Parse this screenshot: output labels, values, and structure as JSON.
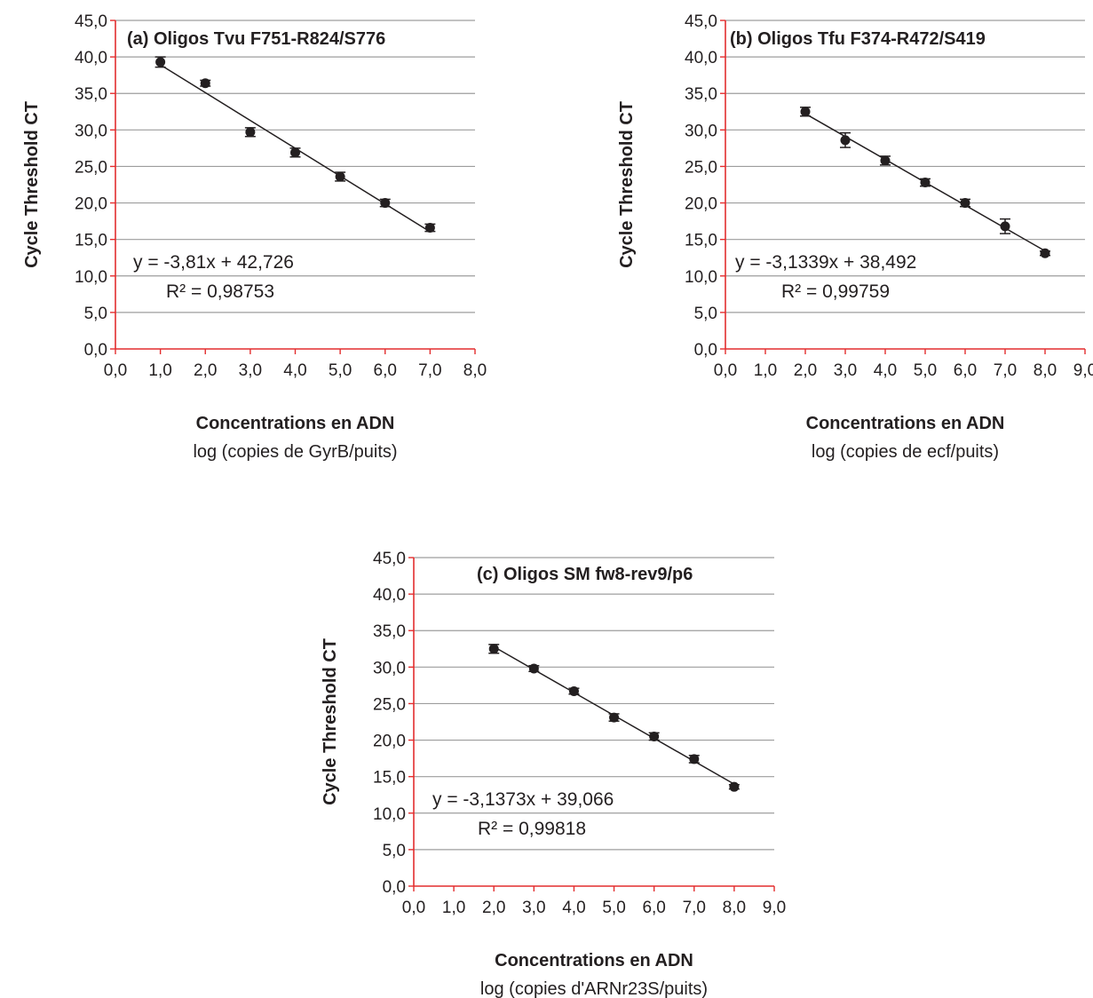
{
  "chart_data": [
    {
      "type": "scatter",
      "title": "(a) Oligos Tvu F751-R824/S776",
      "ylabel": "Cycle Threshold CT",
      "xlabel": "Concentrations en ADN",
      "xlabel_sub": "log (copies de GyrB/puits)",
      "xlim": [
        0,
        8
      ],
      "ylim": [
        0,
        45
      ],
      "xticks": [
        "0,0",
        "1,0",
        "2,0",
        "3,0",
        "4,0",
        "5,0",
        "6,0",
        "7,0",
        "8,0"
      ],
      "yticks": [
        "0,0",
        "5,0",
        "10,0",
        "15,0",
        "20,0",
        "25,0",
        "30,0",
        "35,0",
        "40,0",
        "45,0"
      ],
      "grid": true,
      "points": [
        {
          "x": 1,
          "y": 39.3,
          "err": 0.7
        },
        {
          "x": 2,
          "y": 36.4,
          "err": 0.4
        },
        {
          "x": 3,
          "y": 29.7,
          "err": 0.6
        },
        {
          "x": 4,
          "y": 26.9,
          "err": 0.6
        },
        {
          "x": 5,
          "y": 23.6,
          "err": 0.6
        },
        {
          "x": 6,
          "y": 20.0,
          "err": 0.5
        },
        {
          "x": 7,
          "y": 16.6,
          "err": 0.5
        }
      ],
      "fit": {
        "slope": -3.81,
        "intercept": 42.726,
        "x_range": [
          1,
          7
        ]
      },
      "equation": "y = -3,81x + 42,726",
      "r2": "R² = 0,98753"
    },
    {
      "type": "scatter",
      "title": "(b) Oligos Tfu F374-R472/S419",
      "ylabel": "Cycle Threshold CT",
      "xlabel": "Concentrations en ADN",
      "xlabel_sub": "log (copies de ecf/puits)",
      "xlim": [
        0,
        9
      ],
      "ylim": [
        0,
        45
      ],
      "xticks": [
        "0,0",
        "1,0",
        "2,0",
        "3,0",
        "4,0",
        "5,0",
        "6,0",
        "7,0",
        "8,0",
        "9,0"
      ],
      "yticks": [
        "0,0",
        "5,0",
        "10,0",
        "15,0",
        "20,0",
        "25,0",
        "30,0",
        "35,0",
        "40,0",
        "45,0"
      ],
      "grid": true,
      "points": [
        {
          "x": 2,
          "y": 32.5,
          "err": 0.6
        },
        {
          "x": 3,
          "y": 28.6,
          "err": 1.0
        },
        {
          "x": 4,
          "y": 25.8,
          "err": 0.6
        },
        {
          "x": 5,
          "y": 22.8,
          "err": 0.5
        },
        {
          "x": 6,
          "y": 20.0,
          "err": 0.5
        },
        {
          "x": 7,
          "y": 16.8,
          "err": 1.0
        },
        {
          "x": 8,
          "y": 13.1,
          "err": 0.3
        }
      ],
      "fit": {
        "slope": -3.1339,
        "intercept": 38.492,
        "x_range": [
          2,
          8
        ]
      },
      "equation": "y = -3,1339x + 38,492",
      "r2": "R² = 0,99759"
    },
    {
      "type": "scatter",
      "title": "(c) Oligos SM fw8-rev9/p6",
      "ylabel": "Cycle Threshold CT",
      "xlabel": "Concentrations en ADN",
      "xlabel_sub": "log (copies d'ARNr23S/puits)",
      "xlim": [
        0,
        9
      ],
      "ylim": [
        0,
        45
      ],
      "xticks": [
        "0,0",
        "1,0",
        "2,0",
        "3,0",
        "4,0",
        "5,0",
        "6,0",
        "7,0",
        "8,0",
        "9,0"
      ],
      "yticks": [
        "0,0",
        "5,0",
        "10,0",
        "15,0",
        "20,0",
        "25,0",
        "30,0",
        "35,0",
        "40,0",
        "45,0"
      ],
      "grid": true,
      "points": [
        {
          "x": 2,
          "y": 32.5,
          "err": 0.6
        },
        {
          "x": 3,
          "y": 29.8,
          "err": 0.4
        },
        {
          "x": 4,
          "y": 26.7,
          "err": 0.4
        },
        {
          "x": 5,
          "y": 23.1,
          "err": 0.5
        },
        {
          "x": 6,
          "y": 20.5,
          "err": 0.5
        },
        {
          "x": 7,
          "y": 17.4,
          "err": 0.5
        },
        {
          "x": 8,
          "y": 13.6,
          "err": 0.3
        }
      ],
      "fit": {
        "slope": -3.1373,
        "intercept": 39.066,
        "x_range": [
          2,
          8
        ]
      },
      "equation": "y = -3,1373x + 39,066",
      "r2": "R² = 0,99818"
    }
  ],
  "colors": {
    "axis": "#e32d2e",
    "grid": "#9d9d9d",
    "marker": "#231f20",
    "text": "#231f20"
  }
}
